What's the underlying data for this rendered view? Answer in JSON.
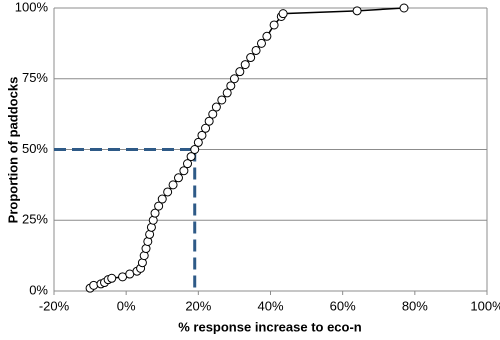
{
  "chart_data": {
    "type": "line",
    "x_label": "% response increase to eco-n",
    "y_label": "Proportion of paddocks",
    "series": [
      {
        "color": "#000000",
        "x": [
          -10,
          -9,
          -7,
          -6,
          -5,
          -4,
          -1,
          1,
          3,
          4,
          4.5,
          5,
          5.5,
          6,
          6.5,
          7,
          7.5,
          8,
          9,
          10,
          11.5,
          13,
          14.5,
          16,
          17,
          18,
          19,
          20,
          21,
          22,
          23,
          24,
          25,
          26.5,
          28,
          29,
          30,
          31.5,
          33,
          34.5,
          36,
          37.5,
          39,
          41,
          43,
          43.5,
          64,
          77
        ],
        "values": [
          1,
          2,
          2.5,
          3,
          4,
          4.5,
          5,
          6,
          7,
          8,
          10,
          12.5,
          15,
          17.5,
          20,
          22.5,
          25,
          27.5,
          30,
          32.5,
          35,
          37.5,
          40,
          42.5,
          45,
          47.5,
          50,
          52.5,
          55,
          57.5,
          60,
          62.5,
          65,
          67.5,
          70,
          72.5,
          75,
          77.5,
          80,
          82.5,
          85,
          87.5,
          90,
          94,
          97,
          98,
          99,
          100
        ]
      }
    ],
    "reference": {
      "x": 19,
      "y": 50,
      "color": "#2e5a87"
    },
    "xlim": [
      -20,
      100
    ],
    "xticks": [
      {
        "value": -20,
        "label": "-20%"
      },
      {
        "value": 0,
        "label": "0%"
      },
      {
        "value": 20,
        "label": "20%"
      },
      {
        "value": 40,
        "label": "40%"
      },
      {
        "value": 60,
        "label": "60%"
      },
      {
        "value": 80,
        "label": "80%"
      },
      {
        "value": 100,
        "label": "100%"
      }
    ],
    "ylim": [
      0,
      100
    ],
    "yticks": [
      {
        "value": 0,
        "label": "0%"
      },
      {
        "value": 25,
        "label": "25%"
      },
      {
        "value": 50,
        "label": "50%"
      },
      {
        "value": 75,
        "label": "75%"
      },
      {
        "value": 100,
        "label": "100%"
      }
    ],
    "grid": true
  }
}
